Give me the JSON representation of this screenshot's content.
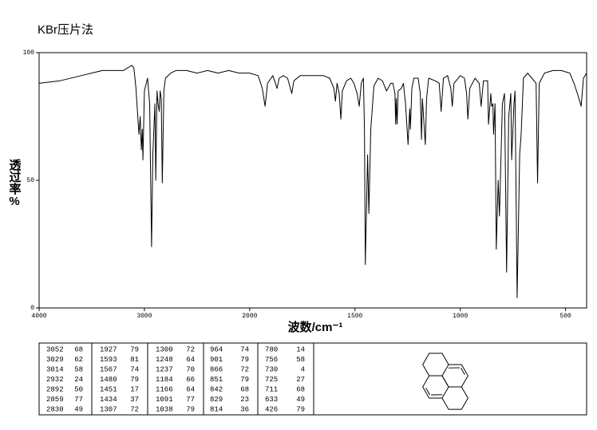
{
  "chart_data": {
    "type": "line",
    "title": "KBr压片法",
    "xlabel": "波数/cm⁻¹",
    "ylabel": "透过率%",
    "xlim": [
      4000,
      400
    ],
    "xticks": [
      4000,
      3000,
      2000,
      1500,
      1000,
      500
    ],
    "ylim": [
      0,
      100
    ],
    "yticks": [
      0,
      50,
      100
    ],
    "color": "#000000",
    "x": [
      4000,
      3800,
      3600,
      3400,
      3200,
      3120,
      3100,
      3080,
      3052,
      3040,
      3029,
      3020,
      3014,
      3000,
      2970,
      2950,
      2932,
      2920,
      2900,
      2892,
      2880,
      2870,
      2859,
      2850,
      2840,
      2830,
      2815,
      2800,
      2750,
      2700,
      2600,
      2500,
      2400,
      2300,
      2200,
      2100,
      2000,
      1960,
      1940,
      1927,
      1915,
      1890,
      1870,
      1860,
      1840,
      1820,
      1800,
      1790,
      1760,
      1700,
      1650,
      1620,
      1600,
      1593,
      1585,
      1575,
      1567,
      1560,
      1540,
      1520,
      1505,
      1490,
      1480,
      1470,
      1460,
      1455,
      1451,
      1445,
      1440,
      1434,
      1425,
      1410,
      1390,
      1370,
      1350,
      1330,
      1320,
      1310,
      1307,
      1304,
      1300,
      1295,
      1280,
      1270,
      1260,
      1248,
      1240,
      1237,
      1230,
      1220,
      1200,
      1190,
      1184,
      1180,
      1166,
      1160,
      1150,
      1120,
      1100,
      1091,
      1080,
      1060,
      1045,
      1038,
      1030,
      1000,
      980,
      970,
      964,
      955,
      930,
      910,
      901,
      890,
      870,
      866,
      855,
      851,
      845,
      842,
      835,
      829,
      820,
      814,
      800,
      790,
      780,
      770,
      760,
      756,
      745,
      740,
      730,
      725,
      718,
      711,
      700,
      680,
      660,
      640,
      633,
      625,
      600,
      560,
      520,
      480,
      460,
      440,
      426,
      415,
      400
    ],
    "values": [
      88,
      89,
      91,
      93,
      93,
      95,
      94,
      86,
      68,
      75,
      62,
      70,
      58,
      85,
      90,
      80,
      24,
      60,
      80,
      50,
      85,
      80,
      77,
      85,
      82,
      49,
      85,
      90,
      92,
      93,
      93,
      92,
      93,
      92,
      93,
      92,
      92,
      91,
      86,
      79,
      88,
      91,
      86,
      90,
      91,
      90,
      84,
      89,
      91,
      91,
      91,
      90,
      86,
      81,
      88,
      84,
      74,
      85,
      89,
      90,
      88,
      84,
      79,
      88,
      90,
      70,
      17,
      40,
      60,
      37,
      70,
      87,
      90,
      89,
      85,
      88,
      88,
      84,
      72,
      82,
      72,
      85,
      86,
      88,
      80,
      64,
      78,
      70,
      86,
      90,
      90,
      84,
      66,
      82,
      64,
      82,
      90,
      89,
      88,
      77,
      90,
      91,
      86,
      79,
      88,
      91,
      90,
      84,
      74,
      86,
      90,
      88,
      79,
      89,
      89,
      72,
      84,
      79,
      80,
      68,
      80,
      23,
      50,
      36,
      80,
      84,
      14,
      75,
      84,
      58,
      80,
      85,
      4,
      27,
      60,
      68,
      90,
      92,
      90,
      88,
      49,
      88,
      92,
      93,
      93,
      92,
      88,
      83,
      79,
      90,
      92
    ]
  },
  "peak_table": {
    "rows": [
      [
        3052,
        68,
        1927,
        79,
        1300,
        72,
        964,
        74,
        780,
        14
      ],
      [
        3029,
        62,
        1593,
        81,
        1248,
        64,
        901,
        79,
        756,
        58
      ],
      [
        3014,
        58,
        1567,
        74,
        1237,
        70,
        866,
        72,
        730,
        4
      ],
      [
        2932,
        24,
        1480,
        79,
        1184,
        66,
        851,
        79,
        725,
        27
      ],
      [
        2892,
        50,
        1451,
        17,
        1166,
        64,
        842,
        68,
        711,
        68
      ],
      [
        2859,
        77,
        1434,
        37,
        1091,
        77,
        829,
        23,
        633,
        49
      ],
      [
        2830,
        49,
        1307,
        72,
        1038,
        79,
        814,
        36,
        426,
        79
      ]
    ]
  }
}
